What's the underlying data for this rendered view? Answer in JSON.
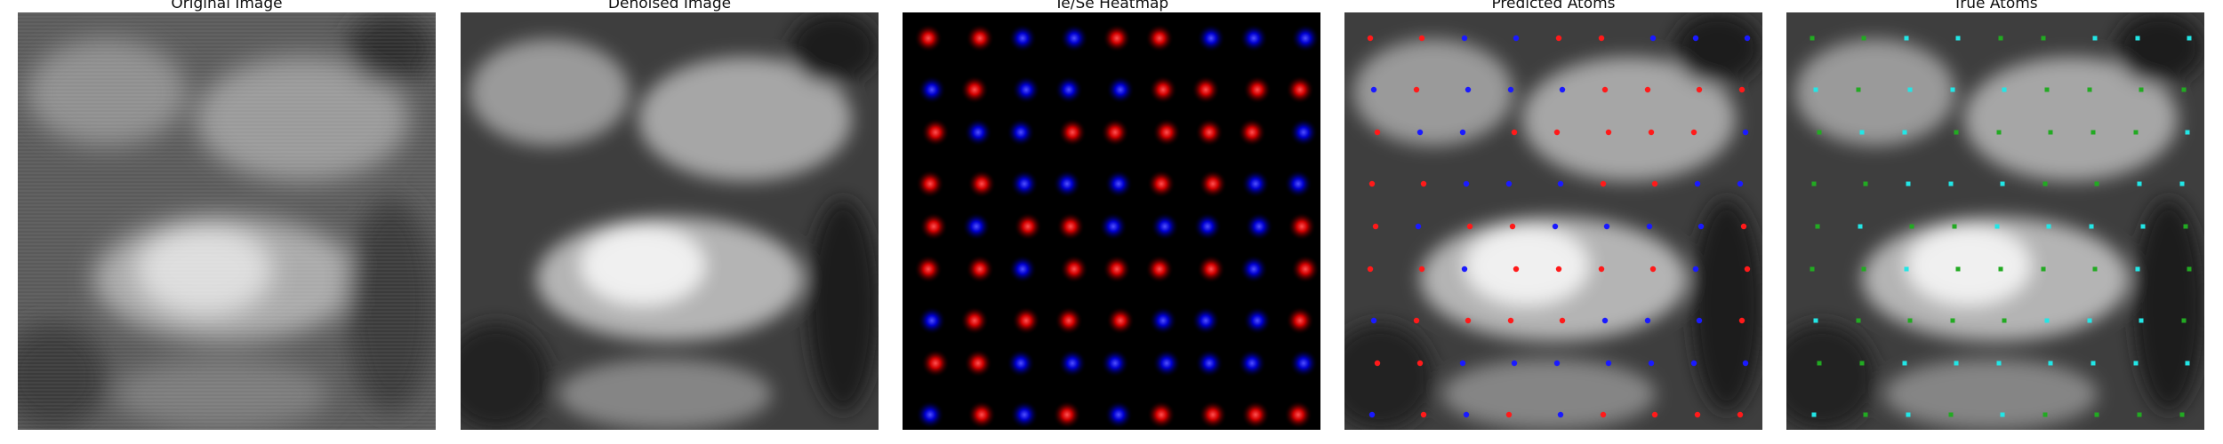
{
  "panels": [
    {
      "title": "Original Image"
    },
    {
      "title": "Denoised Image"
    },
    {
      "title": "Te/Se Heatmap"
    },
    {
      "title": "Predicted Atoms"
    },
    {
      "title": "True Atoms"
    }
  ],
  "colors": {
    "te": "#ff1a1a",
    "se": "#1a1aff",
    "true_te": "#22aa22",
    "true_se": "#22e6e6",
    "heatmap_bg": "#000000"
  },
  "lattice": {
    "cols": 9,
    "rows": 9,
    "labels": [
      "RRSSRRSSS",
      "SRSSSRRRR",
      "RSSRRRRRS",
      "RRSSSRRSS",
      "RSRRSSSSR",
      "RRSRRRRSR",
      "SRRRRSSSR",
      "RRSSSSSSS",
      "SRSRSRRRR"
    ]
  }
}
